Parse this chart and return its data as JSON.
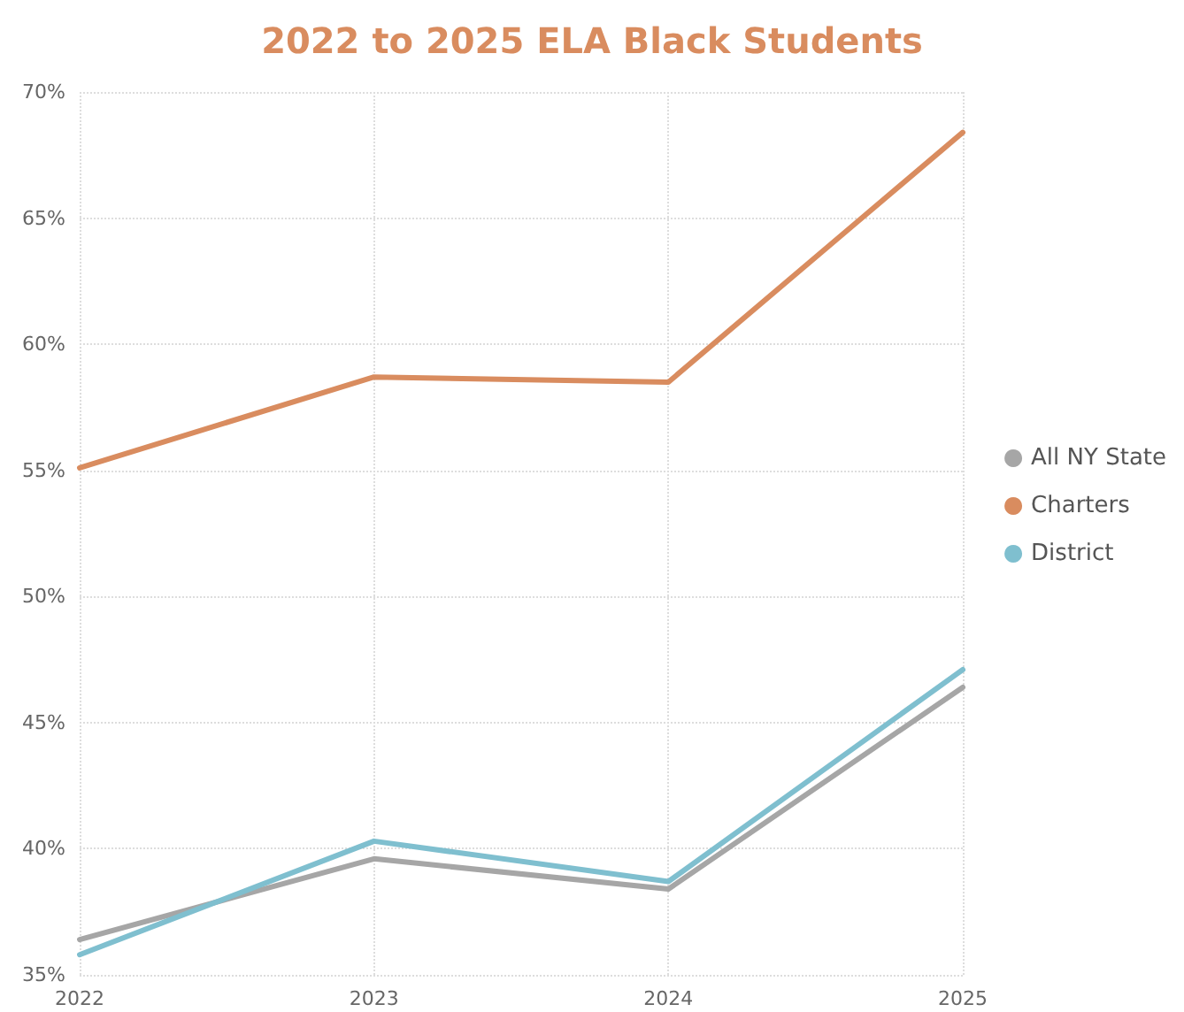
{
  "chart_data": {
    "type": "line",
    "title": "2022 to 2025 ELA Black Students",
    "categories": [
      "2022",
      "2023",
      "2024",
      "2025"
    ],
    "series": [
      {
        "name": "All NY State",
        "color": "#a6a6a6",
        "values": [
          36.4,
          39.6,
          38.4,
          46.4
        ]
      },
      {
        "name": "Charters",
        "color": "#d98c5f",
        "values": [
          55.1,
          58.7,
          58.5,
          68.4
        ]
      },
      {
        "name": "District",
        "color": "#7fbfcf",
        "values": [
          35.8,
          40.3,
          38.7,
          47.1
        ]
      }
    ],
    "ylim": [
      35,
      70
    ],
    "yticks": [
      {
        "value": 35,
        "label": "35%"
      },
      {
        "value": 40,
        "label": "40%"
      },
      {
        "value": 45,
        "label": "45%"
      },
      {
        "value": 50,
        "label": "50%"
      },
      {
        "value": 55,
        "label": "55%"
      },
      {
        "value": 60,
        "label": "60%"
      },
      {
        "value": 65,
        "label": "65%"
      },
      {
        "value": 70,
        "label": "70%"
      }
    ],
    "grid": true,
    "legend": "right",
    "marker": "none",
    "line_style": "solid"
  }
}
